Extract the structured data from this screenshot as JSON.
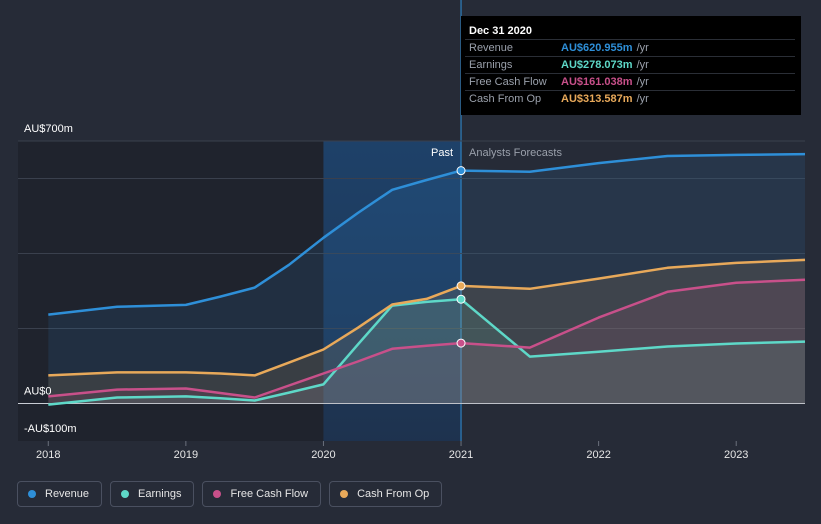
{
  "chart_data": {
    "type": "line",
    "x": [
      2018,
      2018.5,
      2019,
      2019.25,
      2019.5,
      2019.75,
      2020,
      2020.25,
      2020.5,
      2020.75,
      2021,
      2021.5,
      2022,
      2022.5,
      2023,
      2023.5
    ],
    "series": [
      {
        "name": "Revenue",
        "color": "#2e8fd8",
        "values": [
          237,
          258,
          263,
          285,
          309,
          370,
          442,
          508,
          570,
          596,
          620.955,
          618,
          641,
          660,
          663,
          665
        ]
      },
      {
        "name": "Earnings",
        "color": "#5ed8c8",
        "values": [
          -3,
          16,
          19,
          14,
          8,
          29,
          51,
          157,
          261,
          271,
          278.073,
          125,
          138,
          152,
          160,
          165
        ]
      },
      {
        "name": "Free Cash Flow",
        "color": "#c8508a",
        "values": [
          19,
          37,
          40,
          28,
          16,
          48,
          80,
          112,
          146,
          154,
          161.038,
          149,
          229,
          298,
          322,
          330
        ]
      },
      {
        "name": "Cash From Op",
        "color": "#e8a95a",
        "values": [
          75,
          83,
          83,
          80,
          75,
          109,
          144,
          202,
          264,
          279,
          313.587,
          306,
          333,
          362,
          375,
          383
        ]
      }
    ],
    "xlim": [
      2017.78,
      2023.5
    ],
    "xticks": [
      2018,
      2019,
      2020,
      2021,
      2022,
      2023
    ],
    "ylim": [
      -100,
      700
    ],
    "yticks": [
      {
        "value": -100,
        "label": "-AU$100m"
      },
      {
        "value": 0,
        "label": "AU$0"
      },
      {
        "value": 700,
        "label": "AU$700m"
      }
    ],
    "ygrid": [
      0,
      200,
      400,
      600,
      700
    ],
    "highlight": [
      2020,
      2021
    ],
    "past_label": "Past",
    "forecast_label": "Analysts Forecasts",
    "tooltip": {
      "title": "Dec 31 2020",
      "rows": [
        {
          "name": "Revenue",
          "value": "AU$620.955m",
          "unit": "/yr"
        },
        {
          "name": "Earnings",
          "value": "AU$278.073m",
          "unit": "/yr"
        },
        {
          "name": "Free Cash Flow",
          "value": "AU$161.038m",
          "unit": "/yr"
        },
        {
          "name": "Cash From Op",
          "value": "AU$313.587m",
          "unit": "/yr"
        }
      ]
    }
  }
}
